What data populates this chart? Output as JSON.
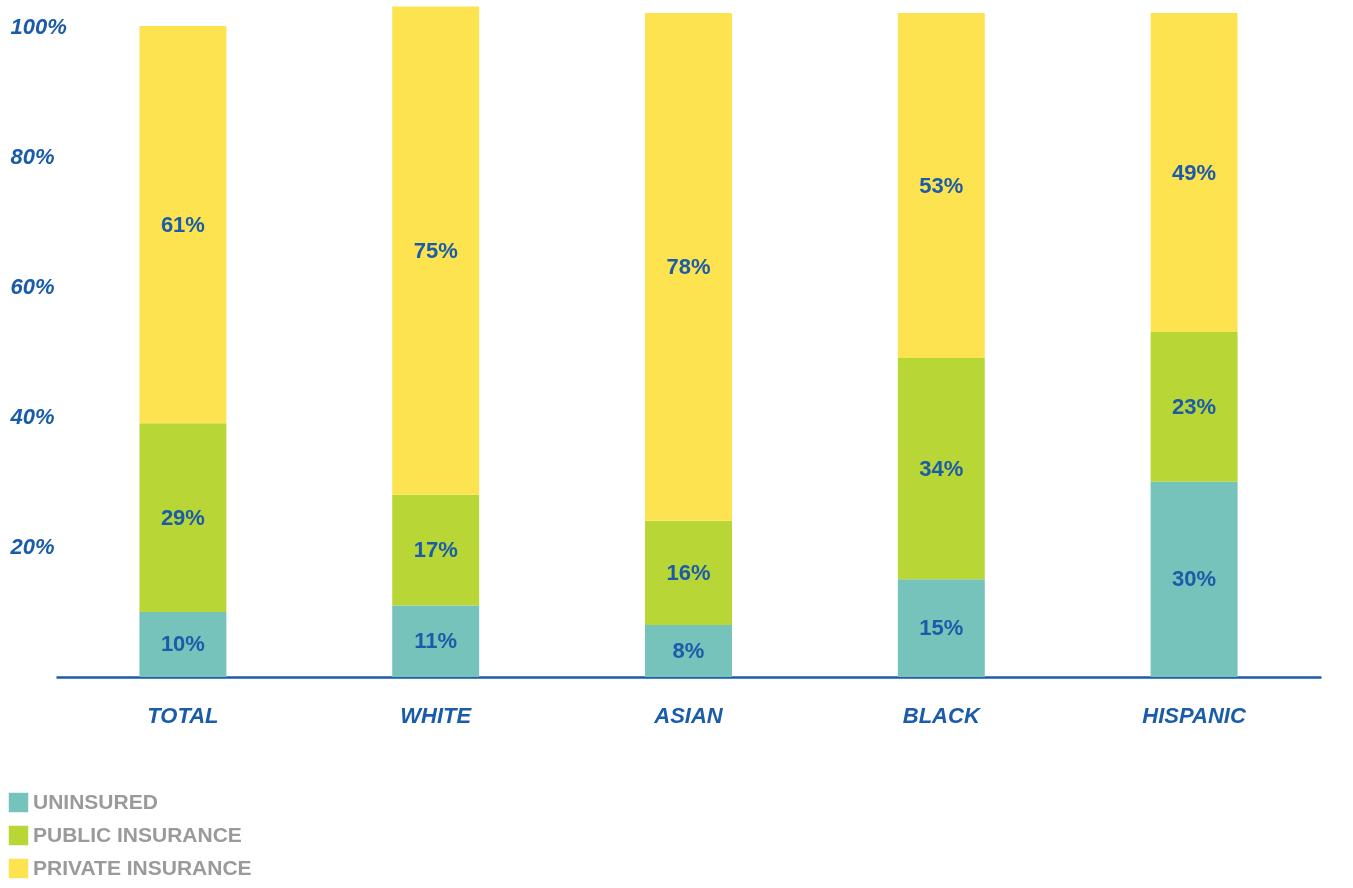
{
  "chart_data": {
    "type": "bar",
    "stacked": true,
    "categories": [
      "TOTAL",
      "WHITE",
      "ASIAN",
      "BLACK",
      "HISPANIC"
    ],
    "series": [
      {
        "name": "UNINSURED",
        "color": "#76c3bc",
        "values": [
          10,
          11,
          8,
          15,
          30
        ],
        "value_labels": [
          "10%",
          "11%",
          "8%",
          "15%",
          "30%"
        ]
      },
      {
        "name": "PUBLIC INSURANCE",
        "color": "#b8d636",
        "values": [
          29,
          17,
          16,
          34,
          23
        ],
        "value_labels": [
          "29%",
          "17%",
          "16%",
          "34%",
          "23%"
        ]
      },
      {
        "name": "PRIVATE INSURANCE",
        "color": "#fee351",
        "values": [
          61,
          75,
          78,
          53,
          49
        ],
        "value_labels": [
          "61%",
          "75%",
          "78%",
          "53%",
          "49%"
        ]
      }
    ],
    "ylim": [
      0,
      104
    ],
    "yticks": [
      {
        "value": 20,
        "label": "20%"
      },
      {
        "value": 40,
        "label": "40%"
      },
      {
        "value": 60,
        "label": "60%"
      },
      {
        "value": 80,
        "label": "80%"
      },
      {
        "value": 100,
        "label": "100%"
      }
    ],
    "grid": false,
    "legend": "bottom left"
  }
}
